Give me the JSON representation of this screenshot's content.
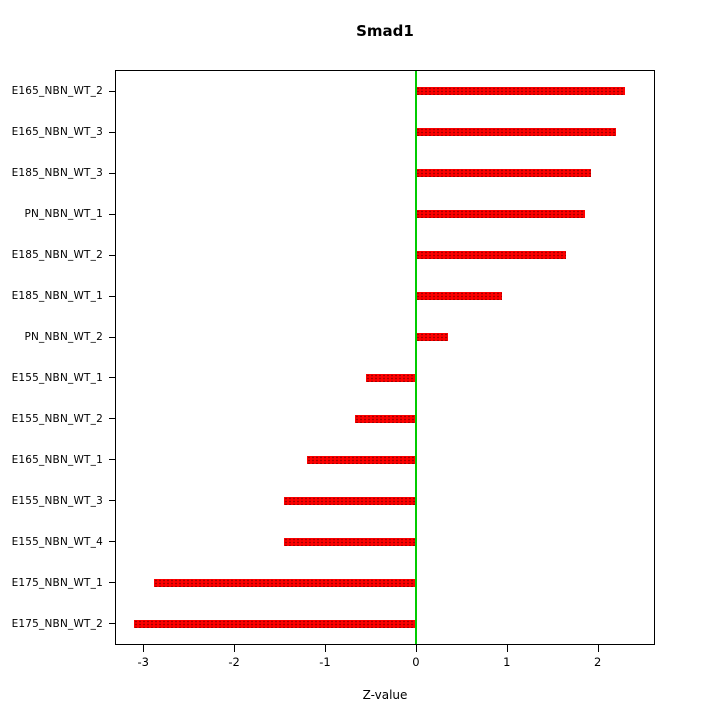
{
  "chart_data": {
    "type": "bar",
    "orientation": "horizontal",
    "title": "Smad1",
    "xlabel": "Z-value",
    "ylabel": "",
    "categories": [
      "E165_NBN_WT_2",
      "E165_NBN_WT_3",
      "E185_NBN_WT_3",
      "PN_NBN_WT_1",
      "E185_NBN_WT_2",
      "E185_NBN_WT_1",
      "PN_NBN_WT_2",
      "E155_NBN_WT_1",
      "E155_NBN_WT_2",
      "E165_NBN_WT_1",
      "E155_NBN_WT_3",
      "E155_NBN_WT_4",
      "E175_NBN_WT_1",
      "E175_NBN_WT_2"
    ],
    "values": [
      2.3,
      2.2,
      1.93,
      1.86,
      1.65,
      0.95,
      0.35,
      -0.55,
      -0.67,
      -1.2,
      -1.45,
      -1.45,
      -2.88,
      -3.1
    ],
    "xlim": [
      -3.3,
      2.62
    ],
    "x_ticks": [
      -3,
      -2,
      -1,
      0,
      1,
      2
    ],
    "bar_color": "#ff0000",
    "zero_line_color": "#00cc00",
    "grid": false,
    "legend_position": "none"
  }
}
